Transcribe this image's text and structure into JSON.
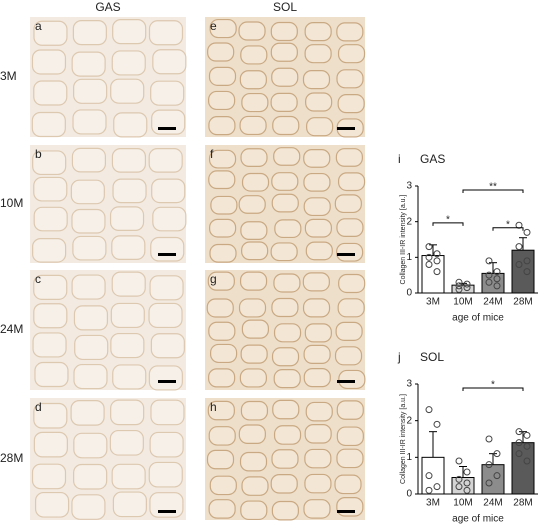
{
  "column_labels": [
    "GAS",
    "SOL"
  ],
  "row_labels": [
    "3M",
    "10M",
    "24M",
    "28M"
  ],
  "panel_letters": [
    "a",
    "b",
    "c",
    "d",
    "e",
    "f",
    "g",
    "h"
  ],
  "chart_data": [
    {
      "type": "bar",
      "panel": "i",
      "title": "GAS",
      "ylabel": "Collagen III-IR intensity [a.u.]",
      "xlabel": "age of mice",
      "categories": [
        "3M",
        "10M",
        "24M",
        "28M"
      ],
      "values": [
        1.05,
        0.22,
        0.55,
        1.2
      ],
      "errors": [
        0.3,
        0.05,
        0.3,
        0.35
      ],
      "points": [
        [
          1.3,
          1.1,
          1.0,
          0.9,
          0.8,
          0.6
        ],
        [
          0.3,
          0.25,
          0.2,
          0.15,
          0.1
        ],
        [
          0.9,
          0.6,
          0.5,
          0.4,
          0.3,
          0.2
        ],
        [
          1.9,
          1.7,
          1.3,
          0.9,
          0.8,
          0.6
        ]
      ],
      "colors": [
        "#ffffff",
        "#d4d4d4",
        "#8c8c8c",
        "#5a5a5a"
      ],
      "ylim": [
        0,
        3
      ],
      "yticks": [
        0,
        1,
        2,
        3
      ],
      "annotations": [
        {
          "text": "*",
          "between": [
            "3M",
            "10M"
          ]
        },
        {
          "text": "**",
          "between": [
            "10M",
            "28M"
          ]
        },
        {
          "text": "*",
          "between": [
            "24M",
            "28M"
          ]
        }
      ]
    },
    {
      "type": "bar",
      "panel": "j",
      "title": "SOL",
      "ylabel": "Collagen III-IR intensity [a.u.]",
      "xlabel": "age of mice",
      "categories": [
        "3M",
        "10M",
        "24M",
        "28M"
      ],
      "values": [
        1.0,
        0.45,
        0.8,
        1.4
      ],
      "errors": [
        0.7,
        0.3,
        0.3,
        0.3
      ],
      "points": [
        [
          2.3,
          1.9,
          0.5,
          0.2,
          0.1
        ],
        [
          0.9,
          0.6,
          0.4,
          0.3,
          0.2,
          0.1
        ],
        [
          1.5,
          1.1,
          0.8,
          0.5,
          0.3
        ],
        [
          1.7,
          1.6,
          1.4,
          1.3,
          1.1,
          0.9
        ]
      ],
      "colors": [
        "#ffffff",
        "#d4d4d4",
        "#8c8c8c",
        "#5a5a5a"
      ],
      "ylim": [
        0,
        3
      ],
      "yticks": [
        0,
        1,
        2,
        3
      ],
      "annotations": [
        {
          "text": "*",
          "between": [
            "10M",
            "28M"
          ]
        }
      ]
    }
  ]
}
